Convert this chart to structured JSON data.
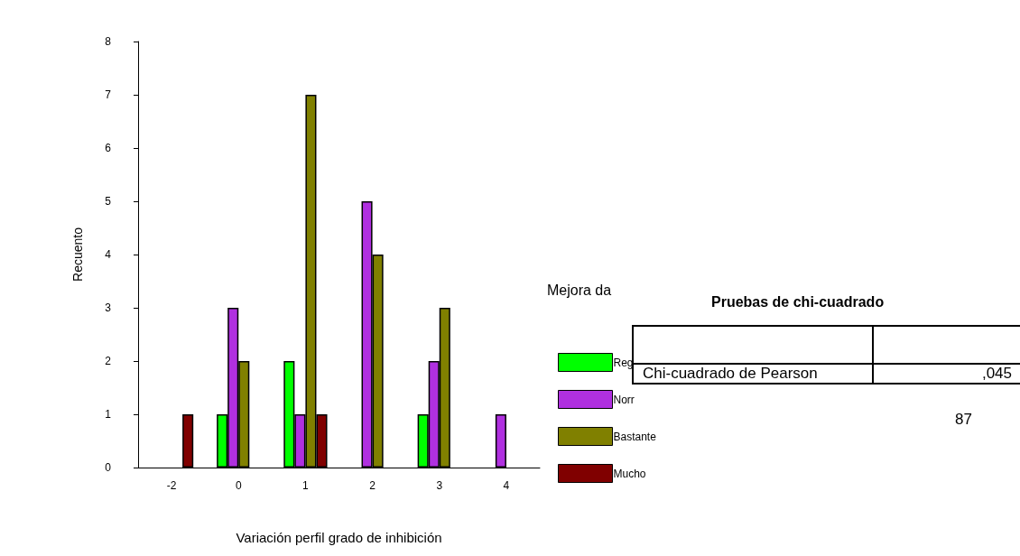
{
  "chart_data": {
    "type": "bar",
    "xlabel": "Variación perfil grado de inhibición",
    "ylabel": "Recuento",
    "legend_title": "Mejora da",
    "categories": [
      "-2",
      "0",
      "1",
      "2",
      "3",
      "4"
    ],
    "series": [
      {
        "name": "Reg",
        "color": "#00ff00",
        "values": [
          null,
          1,
          2,
          null,
          1,
          null
        ]
      },
      {
        "name": "Norr",
        "color": "#b030e0",
        "values": [
          null,
          3,
          1,
          5,
          2,
          1
        ]
      },
      {
        "name": "Bastante",
        "color": "#808000",
        "values": [
          null,
          2,
          7,
          4,
          3,
          null
        ]
      },
      {
        "name": "Mucho",
        "color": "#800000",
        "values": [
          1,
          null,
          1,
          null,
          null,
          null
        ]
      }
    ],
    "ylim": [
      0,
      8
    ],
    "yticks": [
      0,
      1,
      2,
      3,
      4,
      5,
      6,
      7,
      8
    ],
    "grid": false,
    "legend": "right",
    "annotations": [
      "Pruebas de chi-cuadrado",
      "Chi-cuadrado de Pearson",
      ",045",
      "87"
    ]
  }
}
